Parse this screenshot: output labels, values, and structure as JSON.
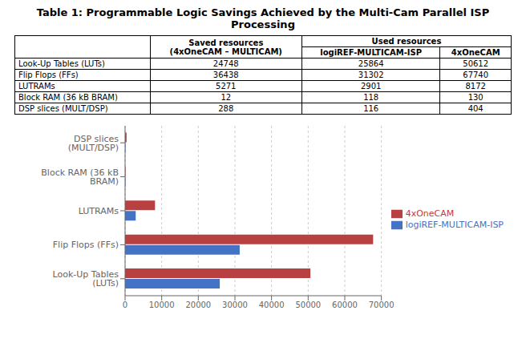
{
  "chart_data": [
    {
      "type": "table",
      "title": "Table 1: Programmable Logic Savings Achieved by the Multi-Cam Parallel ISP Processing",
      "group_header": "Used resources",
      "row_labels": [
        "Look-Up Tables (LUTs)",
        "Flip Flops (FFs)",
        "LUTRAMs",
        "Block RAM (36 kB BRAM)",
        "DSP slices (MULT/DSP)"
      ],
      "columns": [
        {
          "name": "Saved resources\n(4xOneCAM – MULTICAM)",
          "values": [
            24748,
            36438,
            5271,
            12,
            288
          ]
        },
        {
          "name": "logiREF-MULTICAM-ISP",
          "values": [
            25864,
            31302,
            2901,
            118,
            116
          ]
        },
        {
          "name": "4xOneCAM",
          "values": [
            50612,
            67740,
            8172,
            130,
            404
          ]
        }
      ]
    },
    {
      "type": "bar",
      "orientation": "horizontal",
      "categories": [
        "Look-Up Tables (LUTs)",
        "Flip Flops (FFs)",
        "LUTRAMs",
        "Block RAM (36 kB BRAM)",
        "DSP slices (MULT/DSP)"
      ],
      "series": [
        {
          "name": "4xOneCAM",
          "color": "#b94040",
          "values": [
            50612,
            67740,
            8172,
            130,
            404
          ]
        },
        {
          "name": "logiREF-MULTICAM-ISP",
          "color": "#4472c4",
          "values": [
            25864,
            31302,
            2901,
            118,
            116
          ]
        }
      ],
      "xlim": [
        0,
        70000
      ],
      "xticks": [
        0,
        10000,
        20000,
        30000,
        40000,
        50000,
        60000,
        70000
      ],
      "grid": true,
      "legend": "right"
    }
  ]
}
